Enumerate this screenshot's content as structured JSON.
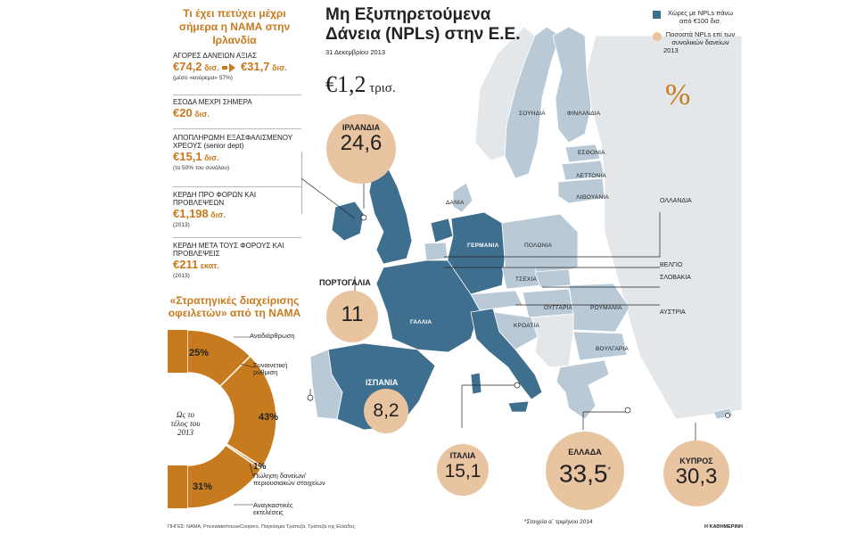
{
  "left": {
    "title": "Τι έχει πετύχει μέχρι σήμερα η ΝΑΜΑ στην Ιρλανδία",
    "blocks": [
      {
        "label": "ΑΓΟΡΕΣ ΔΑΝΕΙΩΝ ΑΞΙΑΣ",
        "value_from": "€74,2",
        "unit_from": "δισ.",
        "value_to": "€31,7",
        "unit_to": "δισ.",
        "note": "(μέσο «κούρεμα» 57%)"
      },
      {
        "label": "ΕΣΟΔΑ ΜΕΧΡΙ ΣΗΜΕΡΑ",
        "value": "€20",
        "unit": "δισ."
      },
      {
        "label": "ΑΠΟΠΛΗΡΩΜΗ ΕΞΑΣΦΑΛΙΣΜΕΝΟΥ ΧΡΕΟΥΣ (senior dept)",
        "value": "€15,1",
        "unit": "δισ.",
        "note": "(το 50% του συνόλου)"
      },
      {
        "label": "ΚΕΡΔΗ ΠΡΟ ΦΟΡΩΝ ΚΑΙ ΠΡΟΒΛΕΨΕΩΝ",
        "value": "€1,198",
        "unit": "δισ.",
        "note": "(2013)"
      },
      {
        "label": "ΚΕΡΔΗ ΜΕΤΑ ΤΟΥΣ ΦΟΡΟΥΣ ΚΑΙ ΠΡΟΒΛΕΨΕΙΣ",
        "value": "€211",
        "unit": "εκατ.",
        "note": "(2013)"
      }
    ],
    "donut": {
      "title": "«Στρατηγικές διαχείρισης οφειλετών» από τη ΝΑΜΑ",
      "center": "Ως το τέλος του 2013",
      "segments": [
        {
          "name": "Αναδιάρθρωση",
          "pct": 25,
          "pct_label": "25%"
        },
        {
          "name": "Συναινετική ρύθμιση",
          "pct": 43,
          "pct_label": "43%"
        },
        {
          "name": "Πώληση δανείων/ περιουσιακών στοιχείων",
          "pct": 1,
          "pct_label": "1%"
        },
        {
          "name": "Αναγκαστικές εκτελέσεις",
          "pct": 31,
          "pct_label": "31%"
        }
      ]
    },
    "sources": "ΠΗΓΕΣ: ΝΑΜΑ, PricewaterhouseCoopers, Παγκόσμια Τράπεζα, Τράπεζα της Ελλάδος"
  },
  "header": {
    "title_line1": "Μη Εξυπηρετούμενα",
    "title_line2": "Δάνεια (NPLs) στην Ε.Ε.",
    "date": "31 Δεκεμβρίου 2013",
    "total_value": "€1,2",
    "total_unit": "τρισ."
  },
  "legend": {
    "item1": "Χώρες με NPLs πάνω από €100 δισ.",
    "item2": "Ποσοστά NPLs επί των συνολικών δανείων",
    "year": "2013",
    "percent": "%"
  },
  "colors": {
    "highlight": "#3f6f8f",
    "other": "#b9c9d6",
    "bubble": "#e9c4a0",
    "accent": "#c77a1e",
    "donut": "#c77a1e"
  },
  "map": {
    "labels": {
      "sweden": "ΣΟΥΗΔΙΑ",
      "finland": "ΦΙΝΛΑΝΔΙΑ",
      "estonia": "ΕΣΘΟΝΙΑ",
      "latvia": "ΛΕΤΤΟΝΙΑ",
      "lithuania": "ΛΙΘΟΥΑΝΙΑ",
      "denmark": "ΔΑΝΙΑ",
      "germany": "ΓΕΡΜΑΝΙΑ",
      "poland": "ΠΟΛΩΝΙΑ",
      "czech": "ΤΣΕΧΙΑ",
      "hungary": "ΟΥΓΓΑΡΙΑ",
      "romania": "ΡΟΥΜΑΝΙΑ",
      "croatia": "ΚΡΟΑΤΙΑ",
      "bulgaria": "ΒΟΥΛΓΑΡΙΑ",
      "france": "ΓΑΛΛΙΑ",
      "netherlands": "ΟΛΛΑΝΔΙΑ",
      "belgium": "ΒΕΛΓΙΟ",
      "slovakia": "ΣΛΟΒΑΚΙΑ",
      "austria": "ΑΥΣΤΡΙΑ"
    },
    "bubbles": [
      {
        "name": "ΙΡΛΑΝΔΙΑ",
        "value": "24,6"
      },
      {
        "name": "ΠΟΡΤΟΓΑΛΙΑ",
        "value": "11"
      },
      {
        "name": "ΙΣΠΑΝΙΑ",
        "value": "8,2"
      },
      {
        "name": "ΙΤΑΛΙΑ",
        "value": "15,1"
      },
      {
        "name": "ΕΛΛΑΔΑ",
        "value": "33,5",
        "mark": "*"
      },
      {
        "name": "ΚΥΠΡΟΣ",
        "value": "30,3"
      }
    ],
    "footnote": "*Στοιχεία α΄ τριμήνου 2014",
    "credit": "Η ΚΑΘΗΜΕΡΙΝΗ"
  }
}
